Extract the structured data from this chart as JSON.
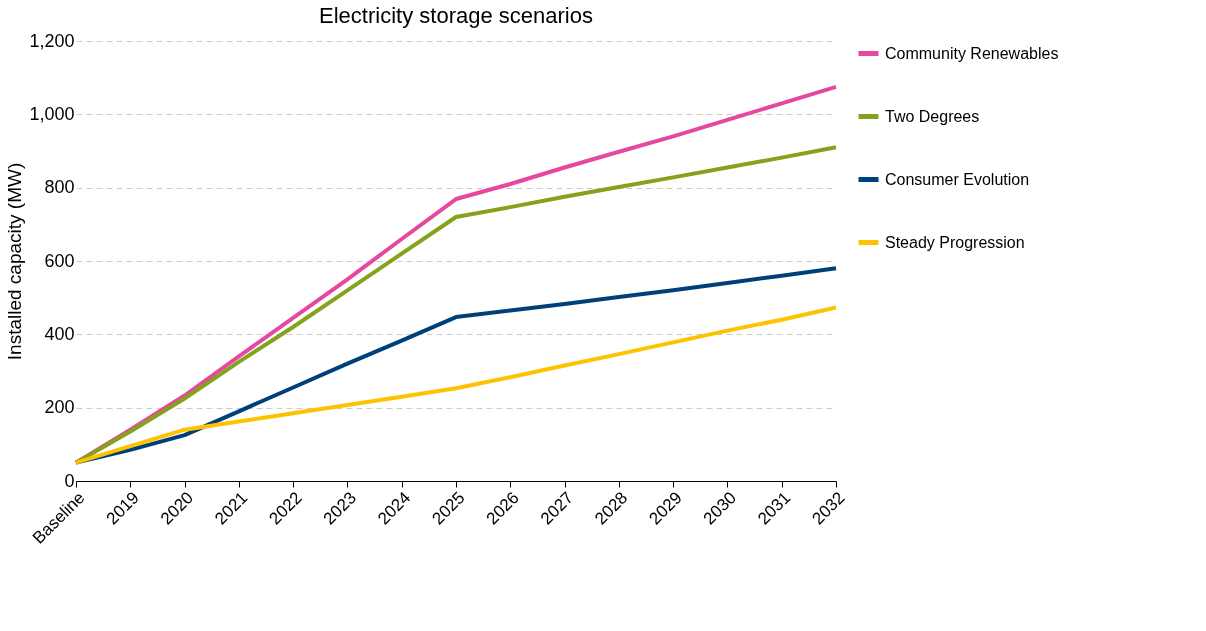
{
  "chart_data": {
    "type": "line",
    "title": "Electricity storage scenarios",
    "ylabel": "Installed capacity (MW)",
    "categories": [
      "Baseline",
      "2019",
      "2020",
      "2021",
      "2022",
      "2023",
      "2024",
      "2025",
      "2026",
      "2027",
      "2028",
      "2029",
      "2030",
      "2031",
      "2032"
    ],
    "series": [
      {
        "name": "Community Renewables",
        "color": "#e6489f",
        "values": [
          50,
          140,
          233,
          340,
          445,
          550,
          660,
          769,
          810,
          855,
          898,
          940,
          985,
          1030,
          1075
        ]
      },
      {
        "name": "Two Degrees",
        "color": "#84a21c",
        "values": [
          50,
          135,
          225,
          325,
          420,
          520,
          620,
          720,
          747,
          775,
          802,
          828,
          855,
          882,
          910
        ]
      },
      {
        "name": "Consumer Evolution",
        "color": "#004078",
        "values": [
          50,
          85,
          125,
          190,
          255,
          320,
          383,
          447,
          465,
          483,
          502,
          520,
          540,
          560,
          580
        ]
      },
      {
        "name": "Steady Progression",
        "color": "#fdc300",
        "values": [
          50,
          95,
          140,
          162,
          185,
          207,
          230,
          253,
          283,
          315,
          346,
          378,
          410,
          440,
          473
        ]
      }
    ],
    "ylim": [
      0,
      1200
    ],
    "yticks": [
      0,
      200,
      400,
      600,
      800,
      {
        "value": 1000,
        "label": "1,000"
      },
      {
        "value": 1200,
        "label": "1,200"
      }
    ],
    "grid": "y",
    "legend": "right",
    "marker": "none",
    "line_style": "solid"
  }
}
